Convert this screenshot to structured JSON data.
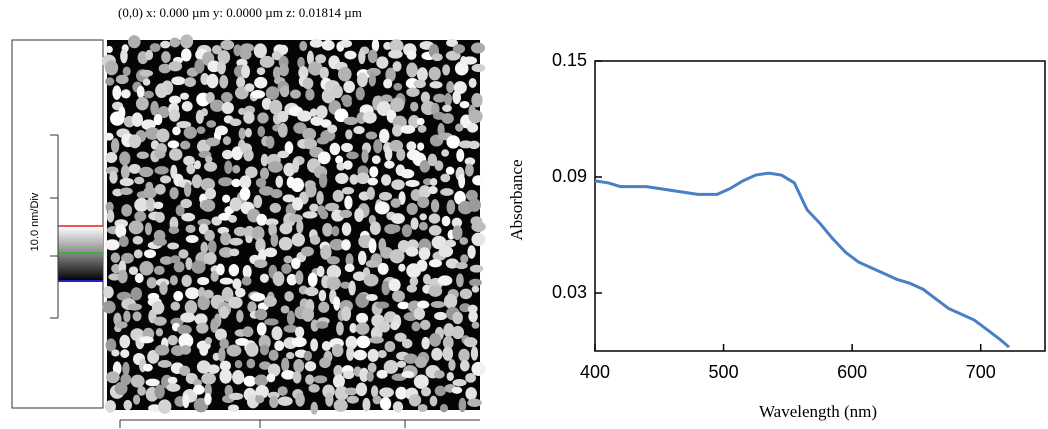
{
  "afm": {
    "header": "(0,0)  x: 0.000 µm   y: 0.0000 µm  z: 0.01814 µm",
    "scale_label": "10.0 nm/Div"
  },
  "chart_data": {
    "type": "line",
    "x_label": "Wavelength (nm)",
    "y_label": "Absorbance",
    "x": [
      400,
      410,
      420,
      440,
      460,
      480,
      495,
      505,
      515,
      525,
      535,
      545,
      555,
      565,
      575,
      585,
      595,
      605,
      615,
      625,
      635,
      645,
      655,
      665,
      675,
      685,
      695,
      705,
      715,
      722
    ],
    "series": [
      {
        "name": "Absorbance",
        "color": "#4a7fc4",
        "values": [
          0.088,
          0.087,
          0.085,
          0.085,
          0.083,
          0.081,
          0.081,
          0.084,
          0.088,
          0.091,
          0.092,
          0.091,
          0.087,
          0.073,
          0.066,
          0.058,
          0.051,
          0.046,
          0.043,
          0.04,
          0.037,
          0.035,
          0.032,
          0.027,
          0.022,
          0.019,
          0.016,
          0.011,
          0.006,
          0.002
        ]
      }
    ],
    "xlim": [
      400,
      750
    ],
    "ylim": [
      0,
      0.15
    ],
    "xticks": [
      400,
      500,
      600,
      700
    ],
    "yticks": [
      0.03,
      0.09,
      0.15
    ]
  }
}
